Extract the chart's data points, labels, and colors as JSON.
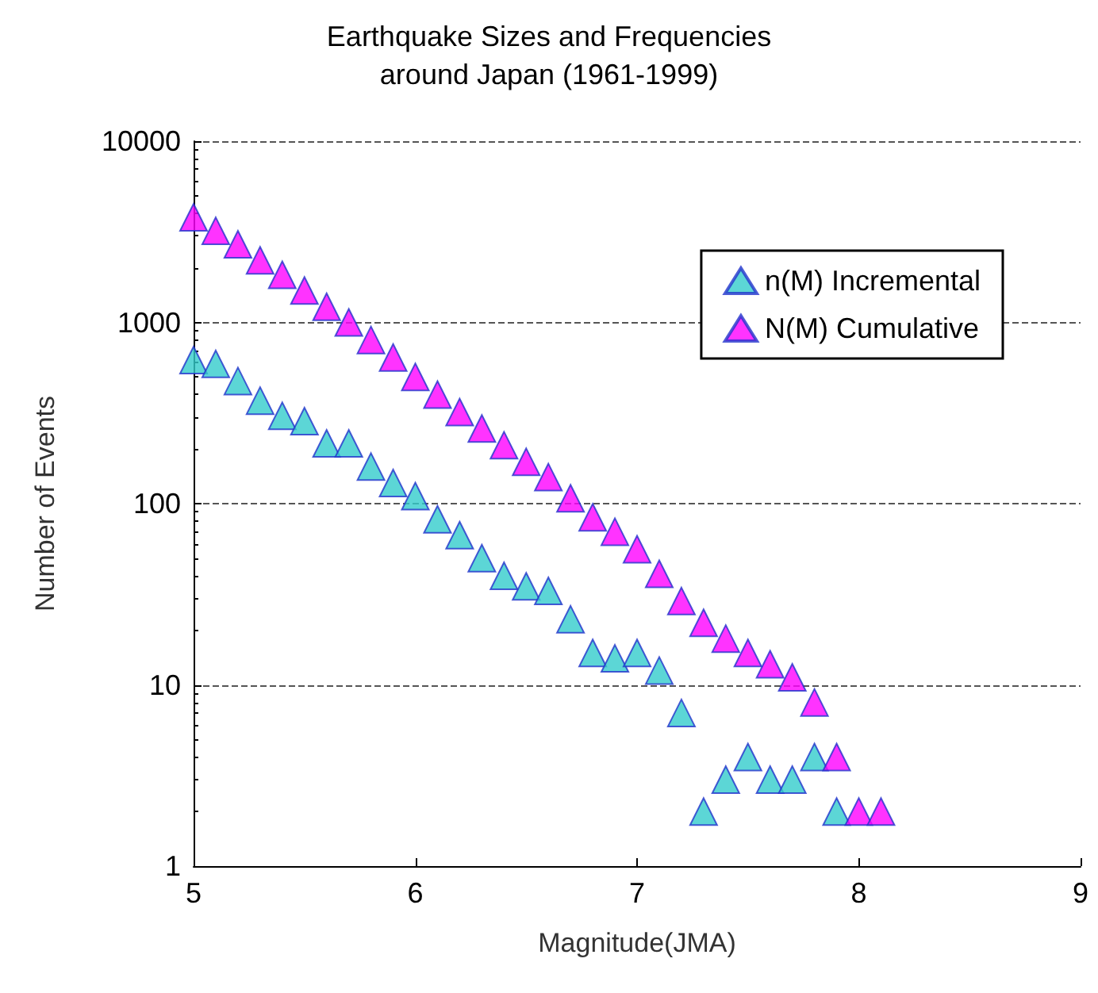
{
  "chart_data": {
    "type": "scatter",
    "title": "Earthquake Sizes and Frequencies\naround Japan (1961-1999)",
    "xlabel": "Magnitude(JMA)",
    "ylabel": "Number of Events",
    "log": "y",
    "grid": "y",
    "legend": "top right",
    "marker": "triangle",
    "xlim": [
      5,
      9
    ],
    "xticks": [
      5,
      6,
      7,
      8,
      9
    ],
    "ylim": [
      1,
      10000
    ],
    "yticks": [
      1,
      10,
      100,
      1000,
      10000
    ],
    "series": [
      {
        "name": "n(M) Incremental",
        "color": "#33cccc",
        "x": [
          5.0,
          5.1,
          5.2,
          5.3,
          5.4,
          5.5,
          5.6,
          5.7,
          5.8,
          5.9,
          6.0,
          6.1,
          6.2,
          6.3,
          6.4,
          6.5,
          6.6,
          6.7,
          6.8,
          6.9,
          7.0,
          7.1,
          7.2,
          7.3,
          7.4,
          7.5,
          7.6,
          7.7,
          7.8,
          7.9
        ],
        "values": [
          620,
          590,
          475,
          370,
          305,
          285,
          215,
          215,
          160,
          130,
          110,
          82,
          67,
          50,
          40,
          35,
          33,
          23,
          15,
          14,
          15,
          12,
          7,
          2,
          3,
          4,
          3,
          3,
          4,
          2
        ]
      },
      {
        "name": "N(M) Cumulative",
        "color": "#ff00ff",
        "x": [
          5.0,
          5.1,
          5.2,
          5.3,
          5.4,
          5.5,
          5.6,
          5.7,
          5.8,
          5.9,
          6.0,
          6.1,
          6.2,
          6.3,
          6.4,
          6.5,
          6.6,
          6.7,
          6.8,
          6.9,
          7.0,
          7.1,
          7.2,
          7.3,
          7.4,
          7.5,
          7.6,
          7.7,
          7.8,
          7.9,
          8.0,
          8.1
        ],
        "values": [
          3800,
          3200,
          2700,
          2200,
          1830,
          1500,
          1220,
          1000,
          800,
          640,
          500,
          400,
          320,
          260,
          210,
          170,
          140,
          107,
          84,
          70,
          56,
          41,
          29,
          22,
          18,
          15,
          13,
          11,
          8,
          4,
          2,
          2
        ]
      }
    ]
  }
}
